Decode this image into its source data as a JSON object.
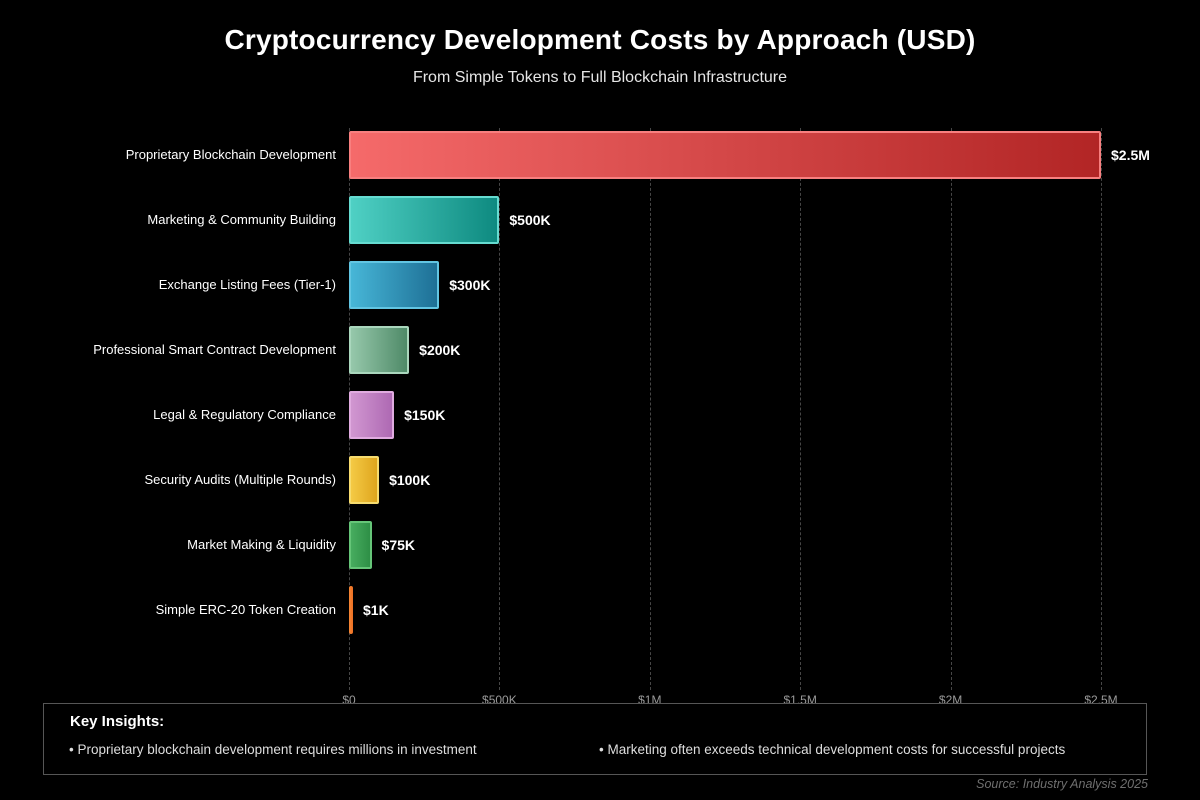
{
  "title": "Cryptocurrency Development Costs by Approach (USD)",
  "subtitle": "From Simple Tokens to Full Blockchain Infrastructure",
  "source": "Source: Industry Analysis 2025",
  "insights": {
    "heading": "Key Insights:",
    "bullets": [
      "• Proprietary blockchain development requires millions in investment",
      "• Marketing often exceeds technical development costs for successful projects"
    ]
  },
  "chart_data": {
    "type": "bar",
    "orientation": "horizontal",
    "title": "Cryptocurrency Development Costs by Approach (USD)",
    "subtitle": "From Simple Tokens to Full Blockchain Infrastructure",
    "xlabel": "",
    "ylabel": "",
    "grid": "vertical-dashed",
    "legend": "none",
    "x_axis": {
      "min": 0,
      "max": 2500000,
      "ticks": [
        {
          "value": 0,
          "label": "$0"
        },
        {
          "value": 500000,
          "label": "$500K"
        },
        {
          "value": 1000000,
          "label": "$1M"
        },
        {
          "value": 1500000,
          "label": "$1.5M"
        },
        {
          "value": 2000000,
          "label": "$2M"
        },
        {
          "value": 2500000,
          "label": "$2.5M"
        }
      ]
    },
    "bars": [
      {
        "category": "Proprietary Blockchain Development",
        "value": 2500000,
        "label": "$2.5M",
        "color_start": "#f56a6a",
        "color_end": "#b22525",
        "border": "#f87f7f"
      },
      {
        "category": "Marketing & Community Building",
        "value": 500000,
        "label": "$500K",
        "color_start": "#4fd0c4",
        "color_end": "#0e8a80",
        "border": "#66dcd1"
      },
      {
        "category": "Exchange Listing Fees (Tier-1)",
        "value": 300000,
        "label": "$300K",
        "color_start": "#47b6d7",
        "color_end": "#1e7096",
        "border": "#62c5e2"
      },
      {
        "category": "Professional Smart Contract Development",
        "value": 200000,
        "label": "$200K",
        "color_start": "#96c8ab",
        "color_end": "#4f8a68",
        "border": "#aad7bd"
      },
      {
        "category": "Legal & Regulatory Compliance",
        "value": 150000,
        "label": "$150K",
        "color_start": "#d197d1",
        "color_end": "#ae69b3",
        "border": "#e0abe0"
      },
      {
        "category": "Security Audits (Multiple Rounds)",
        "value": 100000,
        "label": "$100K",
        "color_start": "#f4ca45",
        "color_end": "#dfa51d",
        "border": "#f7dc6f"
      },
      {
        "category": "Market Making & Liquidity",
        "value": 75000,
        "label": "$75K",
        "color_start": "#47ac5f",
        "color_end": "#2e8f46",
        "border": "#65c578"
      },
      {
        "category": "Simple ERC-20 Token Creation",
        "value": 1000,
        "label": "$1K",
        "color_start": "#f58634",
        "color_end": "#ed7024",
        "border": "#f79b55"
      }
    ]
  }
}
